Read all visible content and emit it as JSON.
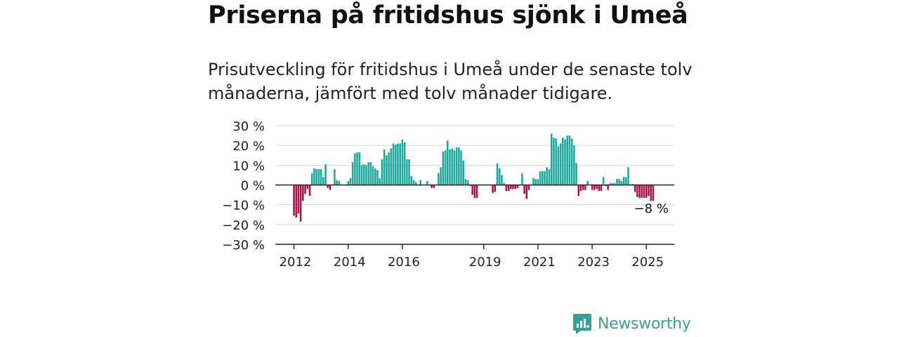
{
  "header": {
    "title": "Priserna på fritidshus sjönk i Umeå",
    "subtitle": "Prisutveckling för fritidshus i Umeå under de senaste tolv månaderna, jämfört med tolv månader tidigare."
  },
  "brand": {
    "name": "Newsworthy",
    "icon": "newsworthy-logo-icon",
    "color": "#3a9e94"
  },
  "colors": {
    "positive": "#1aa69a",
    "negative": "#a90f46",
    "grid": "#d9d9d9",
    "axis": "#222222"
  },
  "chart_data": {
    "type": "bar",
    "title": "",
    "xlabel": "",
    "ylabel": "",
    "ylim": [
      -30,
      30
    ],
    "ytick_labels": [
      "30 %",
      "20 %",
      "10 %",
      "0 %",
      "−10 %",
      "−20 %",
      "−30 %"
    ],
    "yticks": [
      30,
      20,
      10,
      0,
      -10,
      -20,
      -30
    ],
    "xtick_labels": [
      "2012",
      "2014",
      "2016",
      "2019",
      "2021",
      "2023",
      "2025"
    ],
    "xticks": [
      "2012-01",
      "2014-01",
      "2016-01",
      "2019-01",
      "2021-01",
      "2023-01",
      "2025-01"
    ],
    "grid": true,
    "annotation": "−8 %",
    "series": [
      {
        "start": "2012-01",
        "values": [
          -15.5,
          -16.5,
          -14.5,
          -18.5,
          -8,
          -4.5,
          -2,
          -5.5,
          6,
          8.5,
          8,
          8,
          8,
          4,
          10.5,
          -1.5,
          -2.5,
          0,
          8,
          2.5,
          2,
          0,
          0,
          0,
          2,
          3.5,
          11.5,
          16,
          16.5,
          16.5,
          10,
          10.5,
          10,
          11.5,
          11.5,
          9.5,
          8.5,
          7.5,
          3.5,
          13,
          18,
          15,
          16.5,
          18.5,
          21,
          20.5,
          21,
          21,
          23,
          21.5,
          13,
          13,
          4.5,
          2.5,
          1.5,
          0,
          2.5,
          0,
          0,
          2,
          0,
          -1.5,
          -1.5,
          0,
          6,
          9,
          17,
          17.5,
          22.5,
          18,
          18.5,
          17.5,
          19,
          19,
          17.5,
          12.5,
          3,
          2.5,
          -0.5,
          -5,
          -6.5,
          -6.5,
          0,
          0,
          0,
          0,
          0,
          0,
          -4,
          -3.5,
          11,
          8.5,
          5,
          1,
          -3,
          -3,
          -2,
          -2,
          -2,
          -1.5,
          0,
          6,
          -4.5,
          -7,
          -2.5,
          0,
          3.5,
          3,
          3,
          7,
          7,
          7,
          9,
          8,
          26,
          24,
          23.5,
          19.5,
          21,
          24,
          23,
          25,
          25,
          23.5,
          20,
          11,
          -5.5,
          -3,
          -2.5,
          -2.5,
          2,
          0,
          -2.5,
          -2.5,
          -2,
          -3,
          -3,
          4,
          -0.5,
          -2.5,
          1,
          1,
          1,
          3,
          3,
          2,
          4,
          4,
          9,
          0,
          0.5,
          -3.5,
          -6,
          -6.5,
          -6.5,
          -6.5,
          -6.5,
          -5.5,
          -8,
          -8
        ]
      }
    ]
  }
}
